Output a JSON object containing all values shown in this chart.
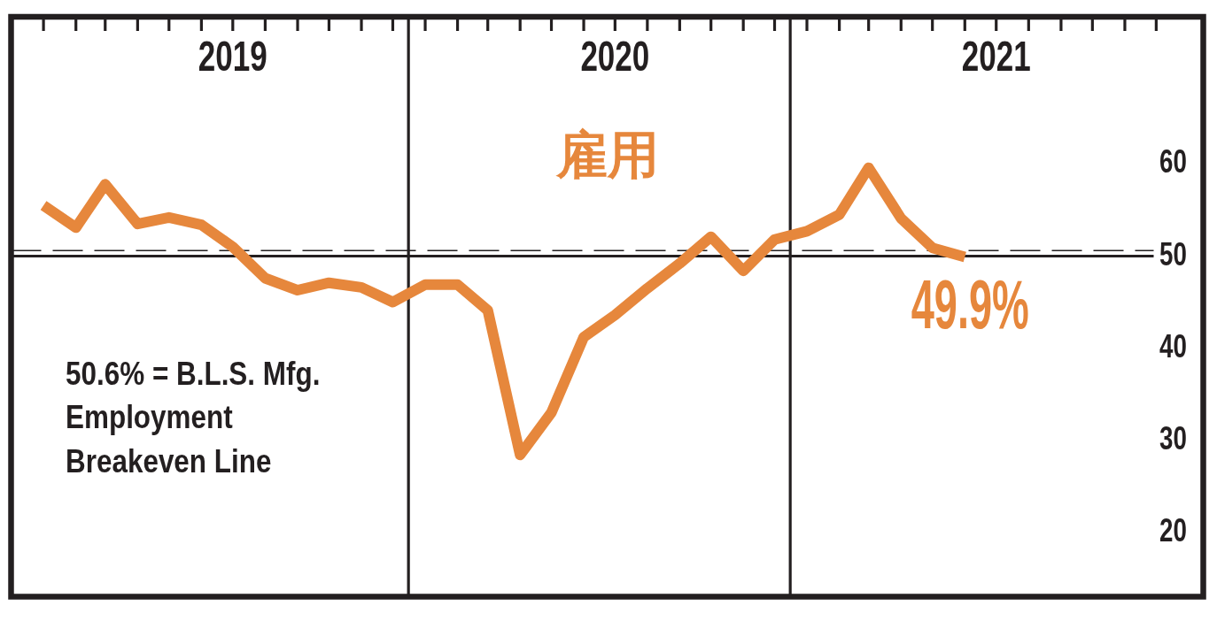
{
  "chart_data": {
    "type": "line",
    "title": "雇用",
    "x": [
      "2019-01",
      "2019-02",
      "2019-03",
      "2019-04",
      "2019-05",
      "2019-06",
      "2019-07",
      "2019-08",
      "2019-09",
      "2019-10",
      "2019-11",
      "2019-12",
      "2020-01",
      "2020-02",
      "2020-03",
      "2020-04",
      "2020-05",
      "2020-06",
      "2020-07",
      "2020-08",
      "2020-09",
      "2020-10",
      "2020-11",
      "2020-12",
      "2021-01",
      "2021-02",
      "2021-03",
      "2021-04",
      "2021-05",
      "2021-06"
    ],
    "series": [
      {
        "color": "#e6873c",
        "values": [
          55.5,
          53.1,
          57.8,
          53.5,
          54.2,
          53.4,
          51.0,
          47.6,
          46.3,
          47.1,
          46.6,
          45.0,
          46.9,
          46.9,
          44.1,
          28.4,
          33.0,
          41.2,
          43.6,
          46.5,
          49.2,
          52.1,
          48.4,
          51.8,
          52.7,
          54.5,
          59.6,
          54.1,
          50.9,
          49.9
        ]
      }
    ],
    "xlim": [
      "2018-12-01",
      "2022-01-15"
    ],
    "xticks": [
      {
        "value": "2019-01",
        "label": null
      },
      {
        "value": "2019-02",
        "label": null
      },
      {
        "value": "2019-03",
        "label": null
      },
      {
        "value": "2019-04",
        "label": null
      },
      {
        "value": "2019-05",
        "label": null
      },
      {
        "value": "2019-06",
        "label": null
      },
      {
        "value": "2019-07",
        "label": null
      },
      {
        "value": "2019-08",
        "label": null
      },
      {
        "value": "2019-09",
        "label": null
      },
      {
        "value": "2019-10",
        "label": null
      },
      {
        "value": "2019-11",
        "label": null
      },
      {
        "value": "2019-12",
        "label": null
      },
      {
        "value": "2020-01",
        "label": null
      },
      {
        "value": "2020-02",
        "label": null
      },
      {
        "value": "2020-03",
        "label": null
      },
      {
        "value": "2020-04",
        "label": null
      },
      {
        "value": "2020-05",
        "label": null
      },
      {
        "value": "2020-06",
        "label": null
      },
      {
        "value": "2020-07",
        "label": null
      },
      {
        "value": "2020-08",
        "label": null
      },
      {
        "value": "2020-09",
        "label": null
      },
      {
        "value": "2020-10",
        "label": null
      },
      {
        "value": "2020-11",
        "label": null
      },
      {
        "value": "2020-12",
        "label": null
      },
      {
        "value": "2021-01",
        "label": null
      },
      {
        "value": "2021-02",
        "label": null
      },
      {
        "value": "2021-03",
        "label": null
      },
      {
        "value": "2021-04",
        "label": null
      },
      {
        "value": "2021-05",
        "label": null
      },
      {
        "value": "2021-06",
        "label": null
      },
      {
        "value": "2021-07",
        "label": null
      },
      {
        "value": "2021-08",
        "label": null
      },
      {
        "value": "2021-09",
        "label": null
      },
      {
        "value": "2021-10",
        "label": null
      },
      {
        "value": "2021-11",
        "label": null
      },
      {
        "value": "2021-12",
        "label": null
      },
      {
        "value": "2019-07-01",
        "label": "2019"
      },
      {
        "value": "2020-07-01",
        "label": "2020"
      },
      {
        "value": "2021-07-01",
        "label": "2021"
      }
    ],
    "ylim": [
      13,
      76
    ],
    "yticks": [
      20,
      30,
      40,
      50,
      60
    ],
    "ref_lines": [
      {
        "axis": "x",
        "value": "2019-12-16",
        "color": "#231f20"
      },
      {
        "axis": "x",
        "value": "2020-12-16",
        "color": "#231f20"
      },
      {
        "axis": "y",
        "value": 50,
        "color": "#231f20"
      },
      {
        "axis": "y",
        "value": 50.6,
        "color": "#231f20",
        "line_style": "dashed"
      }
    ],
    "annotations": [
      "50.6% = B.L.S. Mfg. Employment Breakeven Line",
      {
        "text": "49.9%",
        "x": "2021-06",
        "y": 49.9
      }
    ],
    "line_style": "solid"
  }
}
